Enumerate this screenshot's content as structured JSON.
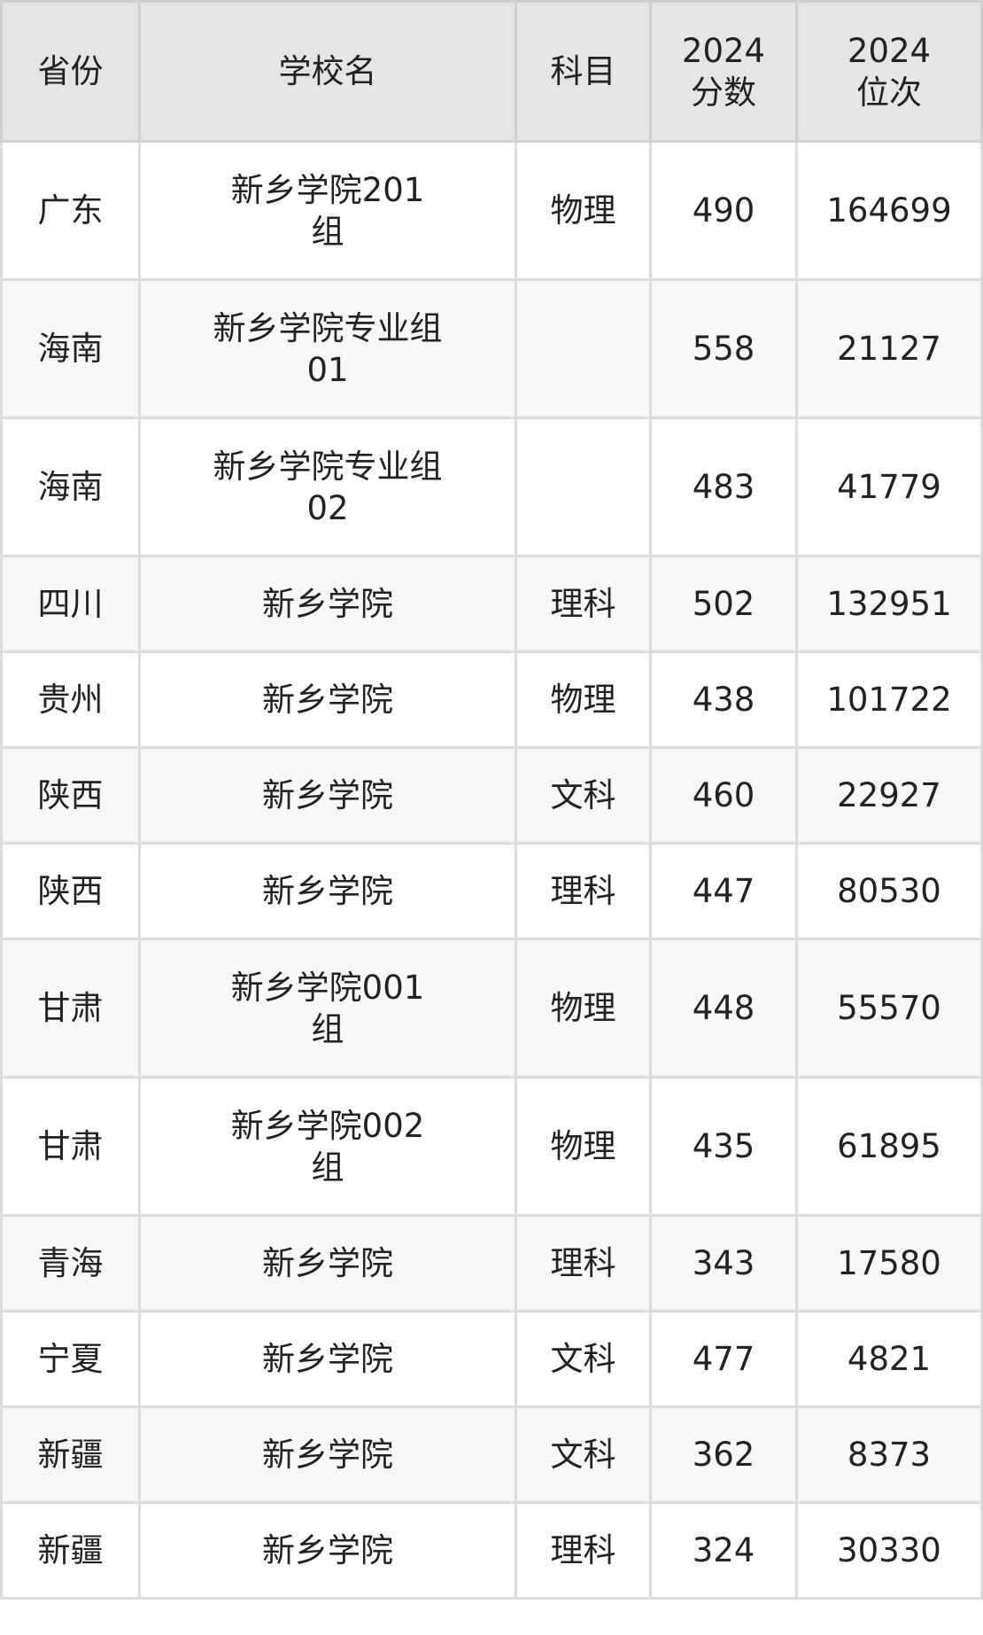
{
  "headers": [
    "省份",
    "学校名",
    "科目",
    "2024\n分数",
    "2024\n位次"
  ],
  "rows": [
    {
      "province": "广东",
      "school": "新乡学院201\n组",
      "subject": "物理",
      "score": "490",
      "rank": "164699"
    },
    {
      "province": "海南",
      "school": "新乡学院专业组\n01",
      "subject": "",
      "score": "558",
      "rank": "21127"
    },
    {
      "province": "海南",
      "school": "新乡学院专业组\n02",
      "subject": "",
      "score": "483",
      "rank": "41779"
    },
    {
      "province": "四川",
      "school": "新乡学院",
      "subject": "理科",
      "score": "502",
      "rank": "132951"
    },
    {
      "province": "贵州",
      "school": "新乡学院",
      "subject": "物理",
      "score": "438",
      "rank": "101722"
    },
    {
      "province": "陕西",
      "school": "新乡学院",
      "subject": "文科",
      "score": "460",
      "rank": "22927"
    },
    {
      "province": "陕西",
      "school": "新乡学院",
      "subject": "理科",
      "score": "447",
      "rank": "80530"
    },
    {
      "province": "甘肃",
      "school": "新乡学院001\n组",
      "subject": "物理",
      "score": "448",
      "rank": "55570"
    },
    {
      "province": "甘肃",
      "school": "新乡学院002\n组",
      "subject": "物理",
      "score": "435",
      "rank": "61895"
    },
    {
      "province": "青海",
      "school": "新乡学院",
      "subject": "理科",
      "score": "343",
      "rank": "17580"
    },
    {
      "province": "宁夏",
      "school": "新乡学院",
      "subject": "文科",
      "score": "477",
      "rank": "4821"
    },
    {
      "province": "新疆",
      "school": "新乡学院",
      "subject": "文科",
      "score": "362",
      "rank": "8373"
    },
    {
      "province": "新疆",
      "school": "新乡学院",
      "subject": "理科",
      "score": "324",
      "rank": "30330"
    }
  ]
}
